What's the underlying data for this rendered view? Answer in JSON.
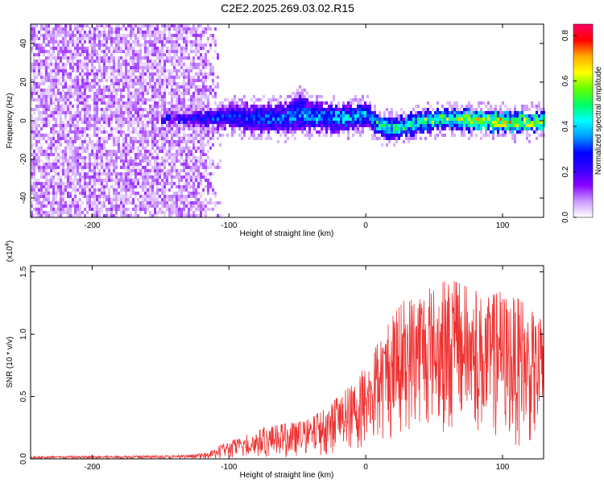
{
  "title": "C2E2.2025.269.03.02.R15",
  "chart_data": [
    {
      "type": "heatmap",
      "title": "C2E2.2025.269.03.02.R15",
      "xlabel": "Height of straight line (km)",
      "ylabel": "Frequency (Hz)",
      "xlim": [
        -245,
        130
      ],
      "ylim": [
        -50,
        50
      ],
      "xticks": [
        -200,
        -100,
        0,
        100
      ],
      "xtick_labels": [
        "-200",
        "-100",
        "0",
        "100"
      ],
      "yticks": [
        -40,
        -20,
        0,
        20,
        40
      ],
      "ytick_labels": [
        "-40",
        "-20",
        "0",
        "20",
        "40"
      ],
      "colorbar": {
        "label": "Normalized spectral amplitude",
        "range": [
          0.0,
          0.85
        ],
        "ticks": [
          0.0,
          0.2,
          0.4,
          0.6,
          0.8
        ],
        "tick_labels": [
          "0.0",
          "0.2",
          "0.4",
          "0.6",
          "0.8"
        ],
        "colormap": [
          "#ffffff",
          "#cc99ff",
          "#8800ff",
          "#3300ff",
          "#0000ff",
          "#0099ff",
          "#00ffff",
          "#00ff66",
          "#66ff00",
          "#ffff00",
          "#ffaa00",
          "#ff0000",
          "#ff0066"
        ]
      },
      "noise_region_x": [
        -245,
        -105
      ],
      "signal_track": {
        "x": [
          -150,
          -120,
          -100,
          -80,
          -60,
          -50,
          -40,
          -20,
          0,
          10,
          20,
          40,
          60,
          80,
          100,
          120,
          130
        ],
        "freq_center": [
          2,
          2,
          3,
          2,
          2,
          5,
          3,
          2,
          4,
          -2,
          -3,
          0,
          2,
          1,
          0,
          0,
          1
        ],
        "half_width": [
          2,
          4,
          6,
          7,
          7,
          9,
          7,
          6,
          6,
          5,
          5,
          5,
          5,
          5,
          5,
          5,
          5
        ],
        "peak_amplitude": [
          0.3,
          0.35,
          0.4,
          0.4,
          0.45,
          0.45,
          0.45,
          0.5,
          0.5,
          0.6,
          0.6,
          0.65,
          0.7,
          0.8,
          0.85,
          0.75,
          0.7
        ]
      }
    },
    {
      "type": "line",
      "title": "",
      "xlabel": "Height of straight line (km)",
      "ylabel": "SNR (10 * v/v)",
      "multiplier_label": "(x10",
      "multiplier_exponent": "4",
      "multiplier_close": ")",
      "xlim": [
        -245,
        130
      ],
      "ylim": [
        0,
        1.55
      ],
      "xticks": [
        -200,
        -100,
        0,
        100
      ],
      "xtick_labels": [
        "-200",
        "-100",
        "0",
        "100"
      ],
      "yticks": [
        0.0,
        0.5,
        1.0,
        1.5
      ],
      "ytick_labels": [
        "0.0",
        "0.5",
        "1.0",
        "1.5"
      ],
      "color": "#ee3333",
      "envelope": {
        "x": [
          -245,
          -130,
          -115,
          -105,
          -90,
          -75,
          -60,
          -45,
          -30,
          -20,
          -10,
          0,
          10,
          20,
          30,
          40,
          50,
          60,
          70,
          80,
          90,
          100,
          110,
          120,
          130
        ],
        "upper": [
          0.02,
          0.03,
          0.05,
          0.12,
          0.18,
          0.25,
          0.28,
          0.3,
          0.4,
          0.5,
          0.6,
          0.75,
          0.95,
          1.15,
          1.3,
          1.4,
          1.35,
          1.45,
          1.4,
          1.35,
          1.3,
          1.35,
          1.3,
          1.2,
          1.1
        ],
        "lower": [
          0.0,
          0.0,
          0.0,
          0.0,
          0.0,
          0.01,
          0.01,
          0.02,
          0.03,
          0.05,
          0.05,
          0.08,
          0.1,
          0.15,
          0.2,
          0.25,
          0.25,
          0.2,
          0.2,
          0.2,
          0.15,
          0.15,
          0.1,
          0.1,
          0.1
        ]
      }
    }
  ]
}
